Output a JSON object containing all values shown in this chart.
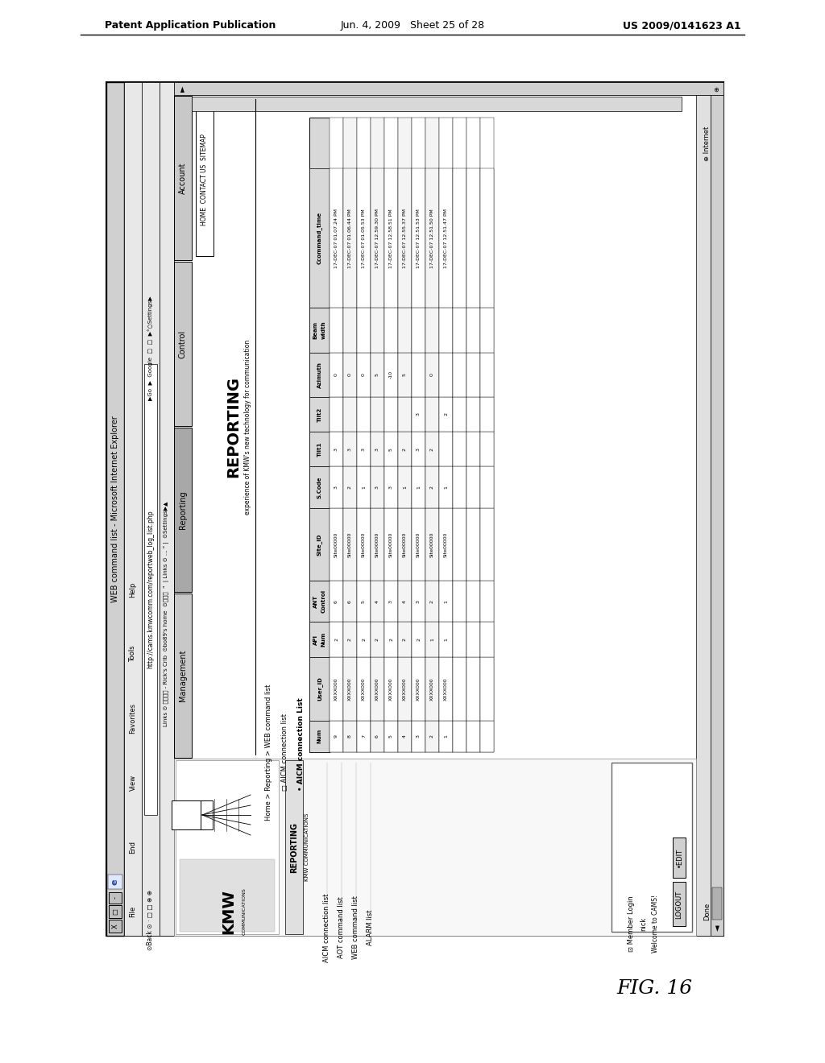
{
  "header_left": "Patent Application Publication",
  "header_mid": "Jun. 4, 2009   Sheet 25 of 28",
  "header_right": "US 2009/0141623 A1",
  "fig_label": "FIG. 16",
  "browser_title": "WEB command list - Microsoft Internet Explorer",
  "address_bar": "http://cams.kmwcomm.com/reportweb_log_list.php",
  "page_title": "REPORTING",
  "page_subtitle": "experience of KMW's new technology for communication",
  "nav_items": [
    "HOME",
    "CONTACT US",
    "SITEMAP"
  ],
  "menu_items": [
    "Management",
    "Reporting",
    "Control",
    "Account"
  ],
  "breadcrumb": "Home > Reporting > WEB command list",
  "sidebar_title": "REPORTING",
  "sidebar_subtitle": "KMW COMMUNICATIONS",
  "sidebar_links": [
    "AICM connection list",
    "AOT command list",
    "WEB command list",
    "ALARM list"
  ],
  "sidebar_user": "Member Login",
  "sidebar_nick": "nick",
  "sidebar_welcome": "Welcome to CAMS!",
  "sidebar_buttons": [
    "LOGOUT",
    "EDIT"
  ],
  "aicm_checkbox": "AICM connection list",
  "aicm_list_title": "AICM connection List",
  "aicm_headers": [
    "Num",
    "User_ID",
    "API\nNum",
    "ANT\nControl",
    "Site_ID",
    "S.Code",
    "Tilt1",
    "Tilt2",
    "Azimuth",
    "Beam\nwidth",
    "Ccommand_time"
  ],
  "aicm_rows": [
    [
      "9",
      "XXXX000",
      "2",
      "6",
      "Site00000",
      "3",
      "3",
      "",
      "0",
      "",
      "17-DEC-07 01.07.24 PM"
    ],
    [
      "8",
      "XXXX000",
      "2",
      "6",
      "Site00000",
      "2",
      "3",
      "",
      "0",
      "",
      "17-DEC-07 01.06.44 PM"
    ],
    [
      "7",
      "XXXX000",
      "2",
      "5",
      "Site00000",
      "1",
      "3",
      "",
      "0",
      "",
      "17-DEC-07 01.05.53 PM"
    ],
    [
      "6",
      "XXXX000",
      "2",
      "4",
      "Site00000",
      "3",
      "3",
      "",
      "5",
      "",
      "17-DEC-07 12.59.30 PM"
    ],
    [
      "5",
      "XXXX000",
      "2",
      "3",
      "Site00000",
      "3",
      "5",
      "",
      "-10",
      "",
      "17-DEC-07 12.58.51 PM"
    ],
    [
      "4",
      "XXXX000",
      "2",
      "4",
      "Site00000",
      "1",
      "2",
      "",
      "5",
      "",
      "17-DEC-07 12.55.37 PM"
    ],
    [
      "3",
      "XXXX000",
      "2",
      "3",
      "Site00000",
      "1",
      "3",
      "3",
      "",
      "",
      "17-DEC-07 12.51.53 PM"
    ],
    [
      "2",
      "XXXX000",
      "1",
      "2",
      "Site00000",
      "2",
      "2",
      "",
      "0",
      "",
      "17-DEC-07 12.51.50 PM"
    ],
    [
      "1",
      "XXXX000",
      "1",
      "1",
      "Site00000",
      "1",
      "",
      "2",
      "",
      "",
      "17-DEC-07 12.51.47 PM"
    ]
  ]
}
